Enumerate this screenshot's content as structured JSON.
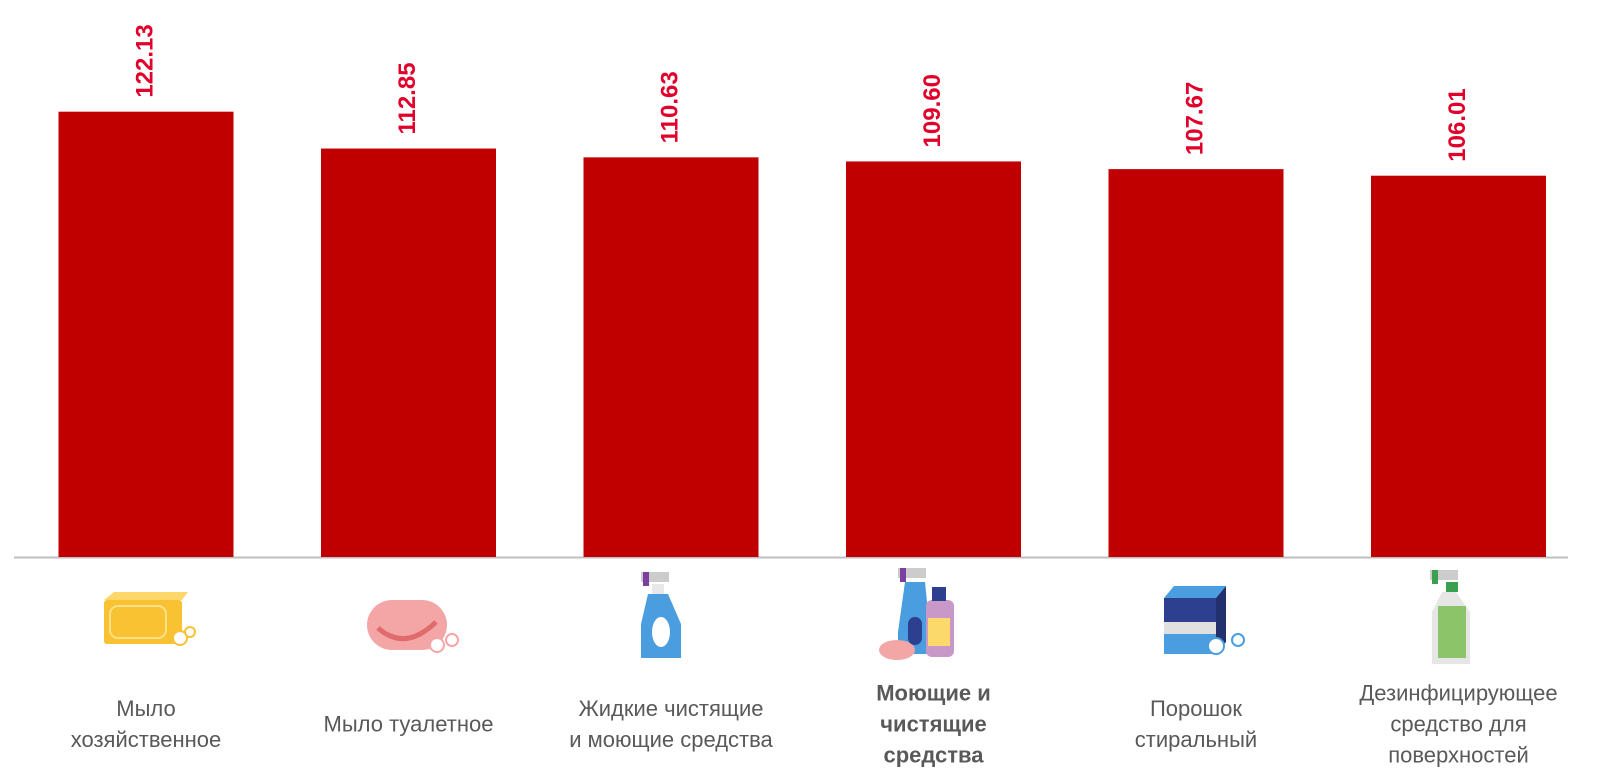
{
  "chart_data": {
    "type": "bar",
    "categories": [
      "Мыло\nхозяйственное",
      "Мыло туалетное",
      "Жидкие чистящие\nи моющие средства",
      "Моющие и\nчистящие\nсредства",
      "Порошок\nстиральный",
      "Дезинфицирующее\nсредство для\nповерхностей"
    ],
    "values": [
      122.13,
      112.85,
      110.63,
      109.6,
      107.67,
      106.01
    ],
    "value_labels": [
      "122.13",
      "112.85",
      "110.63",
      "109.60",
      "107.67",
      "106.01"
    ],
    "color": "#c00000",
    "label_color": "#e0002a",
    "highlight": 3,
    "ylim": [
      10,
      150
    ]
  }
}
